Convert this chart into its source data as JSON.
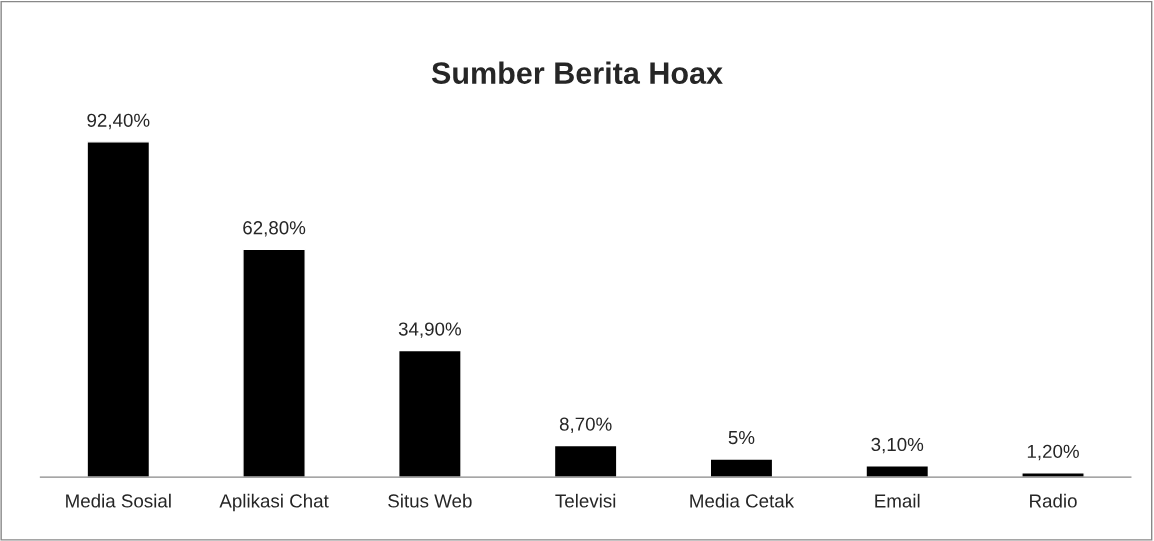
{
  "chart_data": {
    "type": "bar",
    "title": "Sumber Berita Hoax",
    "categories": [
      "Media Sosial",
      "Aplikasi Chat",
      "Situs Web",
      "Televisi",
      "Media Cetak",
      "Email",
      "Radio"
    ],
    "values": [
      92.4,
      62.8,
      34.9,
      8.7,
      5,
      3.1,
      1.2
    ],
    "value_labels": [
      "92,40%",
      "62,80%",
      "34,90%",
      "8,70%",
      "5%",
      "3,10%",
      "1,20%"
    ],
    "color": "#000000",
    "grid": false,
    "legend": false
  }
}
